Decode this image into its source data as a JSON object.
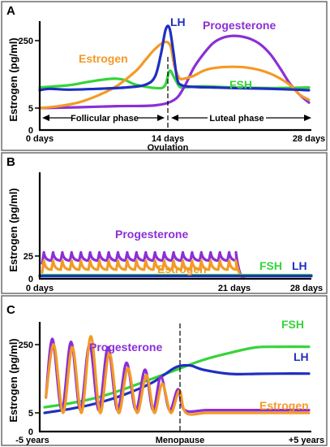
{
  "colors": {
    "estrogen": "#F39A26",
    "progesterone": "#8B2FD6",
    "lh": "#1F2FBF",
    "fsh": "#35D43A",
    "border": "#6E6E6E"
  },
  "chart_data": [
    {
      "panel": "A",
      "type": "line",
      "ylabel": "Estrogen (pg/ml)",
      "yticks": [
        "250",
        "5",
        "0"
      ],
      "xticks": [
        "0 days",
        "14 days",
        "28 days"
      ],
      "xlabel_extra": "Ovulation",
      "phases": {
        "follicular": "Follicular phase",
        "luteal": "Luteal phase"
      },
      "xlim": [
        0,
        28
      ],
      "ylim": [
        0,
        300
      ],
      "series": [
        {
          "name": "Estrogen",
          "x": [
            0,
            2,
            4,
            6,
            8,
            10,
            11,
            12,
            13,
            13.6,
            14,
            14.5,
            15,
            16,
            17,
            18,
            20,
            22,
            24,
            26,
            27,
            28
          ],
          "values": [
            5,
            12,
            25,
            50,
            85,
            140,
            180,
            220,
            245,
            230,
            160,
            115,
            112,
            122,
            140,
            150,
            155,
            150,
            130,
            90,
            55,
            35
          ]
        },
        {
          "name": "LH",
          "x": [
            0,
            1,
            3,
            6,
            9,
            11,
            12,
            12.6,
            13.1,
            13.5,
            13.9,
            14.3,
            14.8,
            16,
            18,
            20,
            24,
            28
          ],
          "values": [
            70,
            75,
            72,
            75,
            80,
            90,
            120,
            200,
            290,
            295,
            210,
            110,
            88,
            82,
            80,
            78,
            75,
            70
          ]
        },
        {
          "name": "FSH",
          "x": [
            0,
            3,
            5,
            7,
            8,
            9,
            10,
            12,
            13,
            13.5,
            14,
            14.5,
            15,
            17,
            20,
            24,
            28
          ],
          "values": [
            80,
            88,
            100,
            110,
            112,
            105,
            90,
            78,
            85,
            140,
            115,
            85,
            80,
            84,
            80,
            78,
            80
          ]
        },
        {
          "name": "Progesterone",
          "x": [
            0,
            4,
            8,
            12,
            14,
            15,
            16,
            17,
            18,
            19,
            20,
            21,
            22,
            23,
            24,
            25,
            26,
            27,
            28
          ],
          "values": [
            5,
            8,
            12,
            15,
            35,
            80,
            150,
            200,
            240,
            260,
            267,
            265,
            255,
            235,
            200,
            150,
            95,
            55,
            25
          ]
        }
      ]
    },
    {
      "panel": "B",
      "type": "line",
      "ylabel": "Estrogen (pg/ml)",
      "yticks": [
        "25",
        "0"
      ],
      "xticks": [
        "0 days",
        "21 days",
        "28 days"
      ],
      "xlim": [
        0,
        28
      ],
      "ylim": [
        0,
        100
      ],
      "pill_cycle": {
        "days": 21,
        "pulses": 21,
        "progesterone": {
          "peak": 29,
          "trough": 20
        },
        "estrogen": {
          "peak": 20,
          "trough": 10
        }
      },
      "series": [
        {
          "name": "Progesterone"
        },
        {
          "name": "Estrogen"
        },
        {
          "name": "FSH",
          "level": 4
        },
        {
          "name": "LH",
          "level": 3
        }
      ]
    },
    {
      "panel": "C",
      "type": "line",
      "ylabel": "Estrogen (pg/ml)",
      "yticks": [
        "250",
        "5",
        "0"
      ],
      "xticks": [
        "-5 years",
        "Menopause",
        "+5 years"
      ],
      "xlim": [
        -5,
        5
      ],
      "ylim": [
        0,
        300
      ],
      "series": [
        {
          "name": "FSH",
          "x": [
            -5,
            -4,
            -3,
            -2,
            -1,
            0,
            1,
            2,
            3,
            4,
            5
          ],
          "values": [
            25,
            40,
            60,
            90,
            125,
            160,
            195,
            220,
            240,
            242,
            242
          ]
        },
        {
          "name": "LH",
          "x": [
            -5,
            -4,
            -3,
            -2,
            -1,
            -0.5,
            0,
            0.5,
            1,
            2,
            3,
            4,
            5
          ],
          "values": [
            5,
            20,
            40,
            70,
            110,
            140,
            170,
            175,
            160,
            145,
            145,
            146,
            146
          ]
        },
        {
          "name": "Progesterone",
          "peaks_x": [
            -4.7,
            -4.0,
            -3.3,
            -2.6,
            -1.9,
            -1.2,
            -0.6,
            0.05
          ],
          "peaks": [
            270,
            260,
            250,
            240,
            185,
            160,
            135,
            90
          ],
          "floor": 15
        },
        {
          "name": "Estrogen",
          "peaks_x": [
            -4.65,
            -3.95,
            -3.25,
            -2.55,
            -1.85,
            -1.15,
            -0.55,
            0.1
          ],
          "peaks": [
            250,
            240,
            280,
            220,
            165,
            140,
            110,
            85
          ],
          "floor": 5
        }
      ]
    }
  ]
}
